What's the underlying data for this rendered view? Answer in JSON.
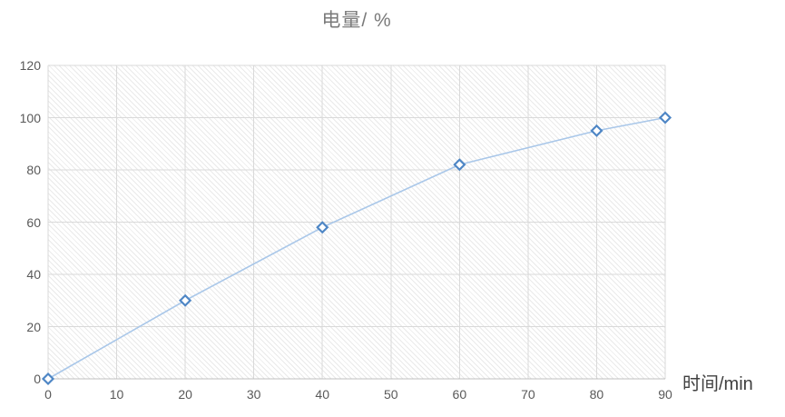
{
  "chart_data": {
    "type": "line",
    "title": "电量/ %",
    "xlabel": "时间/min",
    "ylabel": "",
    "x": [
      0,
      20,
      40,
      60,
      80,
      90
    ],
    "y": [
      0,
      30,
      58,
      82,
      95,
      100
    ],
    "series": [
      {
        "name": "电量",
        "x": [
          0,
          20,
          40,
          60,
          80,
          90
        ],
        "values": [
          0,
          30,
          58,
          82,
          95,
          100
        ]
      }
    ],
    "x_ticks": [
      0,
      10,
      20,
      30,
      40,
      50,
      60,
      70,
      80,
      90
    ],
    "y_ticks": [
      0,
      20,
      40,
      60,
      80,
      100,
      120
    ],
    "xlim": [
      0,
      90
    ],
    "ylim": [
      0,
      120
    ],
    "grid": true,
    "legend_position": "none",
    "marker": "diamond-hollow",
    "plot_background": "diagonal-hatch",
    "colors": {
      "line": "#a9c7e9",
      "marker_stroke": "#4e86c5",
      "marker_fill": "#ffffff",
      "grid": "#d9d9d9",
      "axis": "#bfbfbf",
      "tick_label": "#595959",
      "title": "#7a7a7a",
      "axis_label": "#404040",
      "hatch": "#eaeaea"
    }
  }
}
